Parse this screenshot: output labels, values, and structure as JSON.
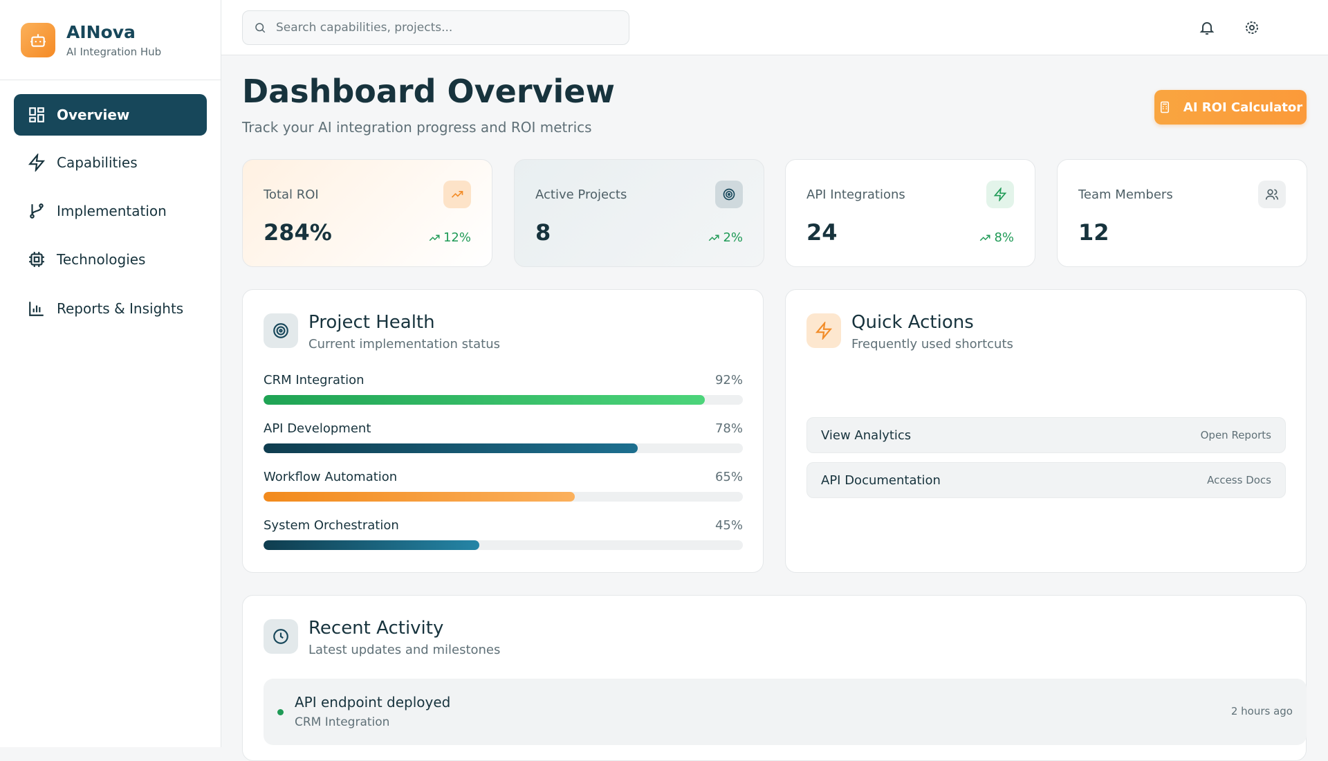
{
  "brand": {
    "name": "AINova",
    "tagline": "AI Integration Hub"
  },
  "nav": [
    {
      "label": "Overview",
      "active": true
    },
    {
      "label": "Capabilities"
    },
    {
      "label": "Implementation"
    },
    {
      "label": "Technologies"
    },
    {
      "label": "Reports & Insights"
    }
  ],
  "search": {
    "placeholder": "Search capabilities, projects..."
  },
  "header": {
    "title": "Dashboard Overview",
    "subtitle": "Track your AI integration progress and ROI metrics",
    "button": "AI ROI Calculator"
  },
  "stats": [
    {
      "label": "Total ROI",
      "value": "284%",
      "change": "12%"
    },
    {
      "label": "Active Projects",
      "value": "8",
      "change": "2%"
    },
    {
      "label": "API Integrations",
      "value": "24",
      "change": "8%"
    },
    {
      "label": "Team Members",
      "value": "12"
    }
  ],
  "project_health": {
    "title": "Project Health",
    "subtitle": "Current implementation status",
    "xlim": [
      0,
      100
    ],
    "items": [
      {
        "name": "CRM Integration",
        "value": 92,
        "value_label": "92%"
      },
      {
        "name": "API Development",
        "value": 78,
        "value_label": "78%"
      },
      {
        "name": "Workflow Automation",
        "value": 65,
        "value_label": "65%"
      },
      {
        "name": "System Orchestration",
        "value": 45,
        "value_label": "45%"
      }
    ]
  },
  "quick_actions": {
    "title": "Quick Actions",
    "subtitle": "Frequently used shortcuts",
    "items": [
      {
        "label": "View Analytics",
        "action": "Open Reports"
      },
      {
        "label": "API Documentation",
        "action": "Access Docs"
      }
    ]
  },
  "recent_activity": {
    "title": "Recent Activity",
    "subtitle": "Latest updates and milestones",
    "items": [
      {
        "title": "API endpoint deployed",
        "project": "CRM Integration",
        "time": "2 hours ago"
      }
    ]
  }
}
